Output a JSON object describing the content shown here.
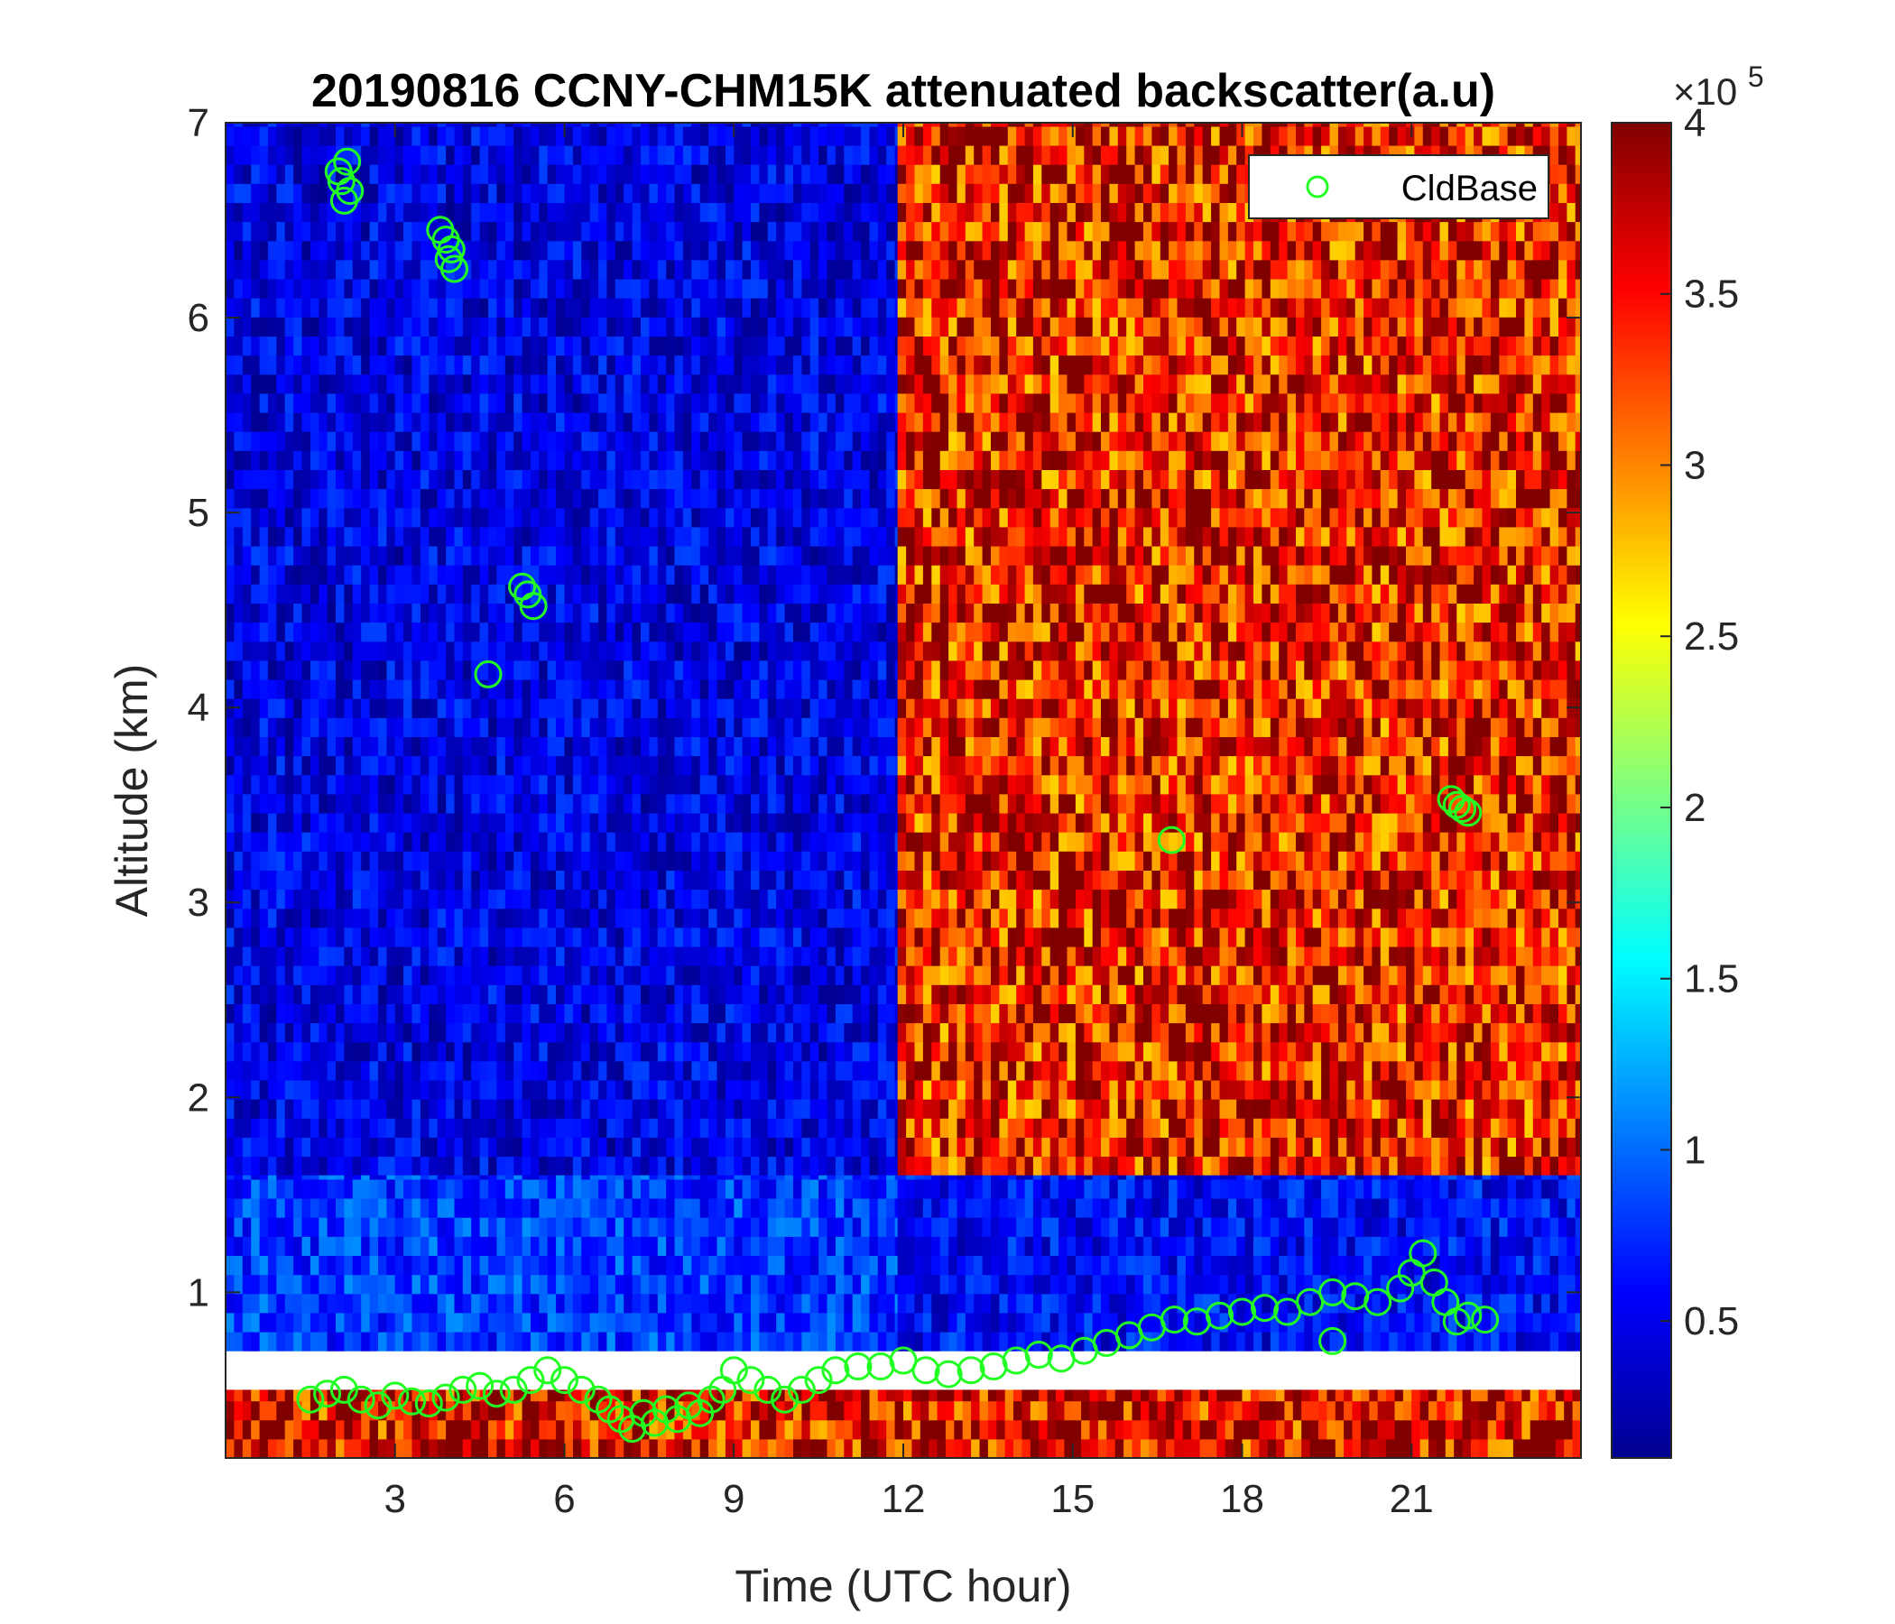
{
  "chart_data": {
    "type": "heatmap",
    "title": "20190816 CCNY-CHM15K attenuated backscatter(a.u)",
    "xlabel": "Time (UTC hour)",
    "ylabel": "Altitude (km)",
    "xlim": [
      0,
      24
    ],
    "ylim": [
      0.15,
      7
    ],
    "xticks": [
      3,
      6,
      9,
      12,
      15,
      18,
      21
    ],
    "xtick_labels": [
      "3",
      "6",
      "9",
      "12",
      "15",
      "18",
      "21"
    ],
    "yticks": [
      1,
      2,
      3,
      4,
      5,
      6,
      7
    ],
    "ytick_labels": [
      "1",
      "2",
      "3",
      "4",
      "5",
      "6",
      "7"
    ],
    "colormap": "jet",
    "colorbar": {
      "clim": [
        0.1,
        4
      ],
      "ticks": [
        0.5,
        1,
        1.5,
        2,
        2.5,
        3,
        3.5,
        4
      ],
      "tick_labels": [
        "0.5",
        "1",
        "1.5",
        "2",
        "2.5",
        "3",
        "3.5",
        "4"
      ],
      "exponent_label_base": "×10",
      "exponent_label_power": "5"
    },
    "legend": {
      "position": "top-right",
      "entries": [
        {
          "name": "CldBase",
          "marker": "circle",
          "color": "#22ff22"
        }
      ]
    },
    "field_regions": [
      {
        "x": [
          0,
          11.9
        ],
        "y": [
          1.6,
          7
        ],
        "level": 0.5
      },
      {
        "x": [
          11.9,
          24
        ],
        "y": [
          1.6,
          7
        ],
        "level": 3.5
      },
      {
        "x": [
          0,
          11.9
        ],
        "y": [
          0.7,
          1.6
        ],
        "level": 0.8
      },
      {
        "x": [
          11.9,
          24
        ],
        "y": [
          0.7,
          1.6
        ],
        "level": 0.6
      },
      {
        "x": [
          0,
          24
        ],
        "y": [
          0.15,
          0.5
        ],
        "level": 3.6
      }
    ],
    "series": [
      {
        "name": "CldBase",
        "points": [
          [
            2.0,
            6.75
          ],
          [
            2.1,
            6.6
          ],
          [
            2.15,
            6.8
          ],
          [
            2.05,
            6.7
          ],
          [
            2.2,
            6.65
          ],
          [
            3.8,
            6.45
          ],
          [
            3.9,
            6.4
          ],
          [
            4.0,
            6.35
          ],
          [
            4.05,
            6.25
          ],
          [
            3.95,
            6.3
          ],
          [
            5.25,
            4.62
          ],
          [
            5.35,
            4.58
          ],
          [
            5.45,
            4.52
          ],
          [
            4.65,
            4.17
          ],
          [
            16.75,
            3.32
          ],
          [
            21.7,
            3.53
          ],
          [
            21.8,
            3.5
          ],
          [
            21.9,
            3.48
          ],
          [
            22.0,
            3.46
          ],
          [
            1.5,
            0.45
          ],
          [
            1.8,
            0.48
          ],
          [
            2.1,
            0.5
          ],
          [
            2.4,
            0.45
          ],
          [
            2.7,
            0.42
          ],
          [
            3.0,
            0.47
          ],
          [
            3.3,
            0.44
          ],
          [
            3.6,
            0.43
          ],
          [
            3.9,
            0.46
          ],
          [
            4.2,
            0.5
          ],
          [
            4.5,
            0.52
          ],
          [
            4.8,
            0.48
          ],
          [
            5.1,
            0.5
          ],
          [
            5.4,
            0.55
          ],
          [
            5.7,
            0.6
          ],
          [
            6.0,
            0.55
          ],
          [
            6.3,
            0.5
          ],
          [
            6.6,
            0.45
          ],
          [
            6.8,
            0.4
          ],
          [
            7.0,
            0.35
          ],
          [
            7.2,
            0.3
          ],
          [
            7.4,
            0.38
          ],
          [
            7.6,
            0.33
          ],
          [
            7.8,
            0.4
          ],
          [
            8.0,
            0.35
          ],
          [
            8.2,
            0.42
          ],
          [
            8.4,
            0.38
          ],
          [
            8.6,
            0.45
          ],
          [
            8.8,
            0.5
          ],
          [
            9.0,
            0.6
          ],
          [
            9.3,
            0.55
          ],
          [
            9.6,
            0.5
          ],
          [
            9.9,
            0.45
          ],
          [
            10.2,
            0.5
          ],
          [
            10.5,
            0.55
          ],
          [
            10.8,
            0.6
          ],
          [
            11.2,
            0.62
          ],
          [
            11.6,
            0.62
          ],
          [
            12.0,
            0.65
          ],
          [
            12.4,
            0.6
          ],
          [
            12.8,
            0.58
          ],
          [
            13.2,
            0.6
          ],
          [
            13.6,
            0.62
          ],
          [
            14.0,
            0.65
          ],
          [
            14.4,
            0.68
          ],
          [
            14.8,
            0.66
          ],
          [
            15.2,
            0.7
          ],
          [
            15.6,
            0.74
          ],
          [
            16.0,
            0.78
          ],
          [
            16.4,
            0.82
          ],
          [
            16.8,
            0.86
          ],
          [
            17.2,
            0.85
          ],
          [
            17.6,
            0.88
          ],
          [
            18.0,
            0.9
          ],
          [
            18.4,
            0.92
          ],
          [
            18.8,
            0.9
          ],
          [
            19.2,
            0.95
          ],
          [
            19.6,
            1.0
          ],
          [
            19.6,
            0.75
          ],
          [
            20.0,
            0.98
          ],
          [
            20.4,
            0.95
          ],
          [
            20.8,
            1.02
          ],
          [
            21.0,
            1.1
          ],
          [
            21.2,
            1.2
          ],
          [
            21.4,
            1.05
          ],
          [
            21.6,
            0.95
          ],
          [
            21.8,
            0.85
          ],
          [
            22.0,
            0.88
          ],
          [
            22.3,
            0.86
          ]
        ]
      }
    ]
  }
}
